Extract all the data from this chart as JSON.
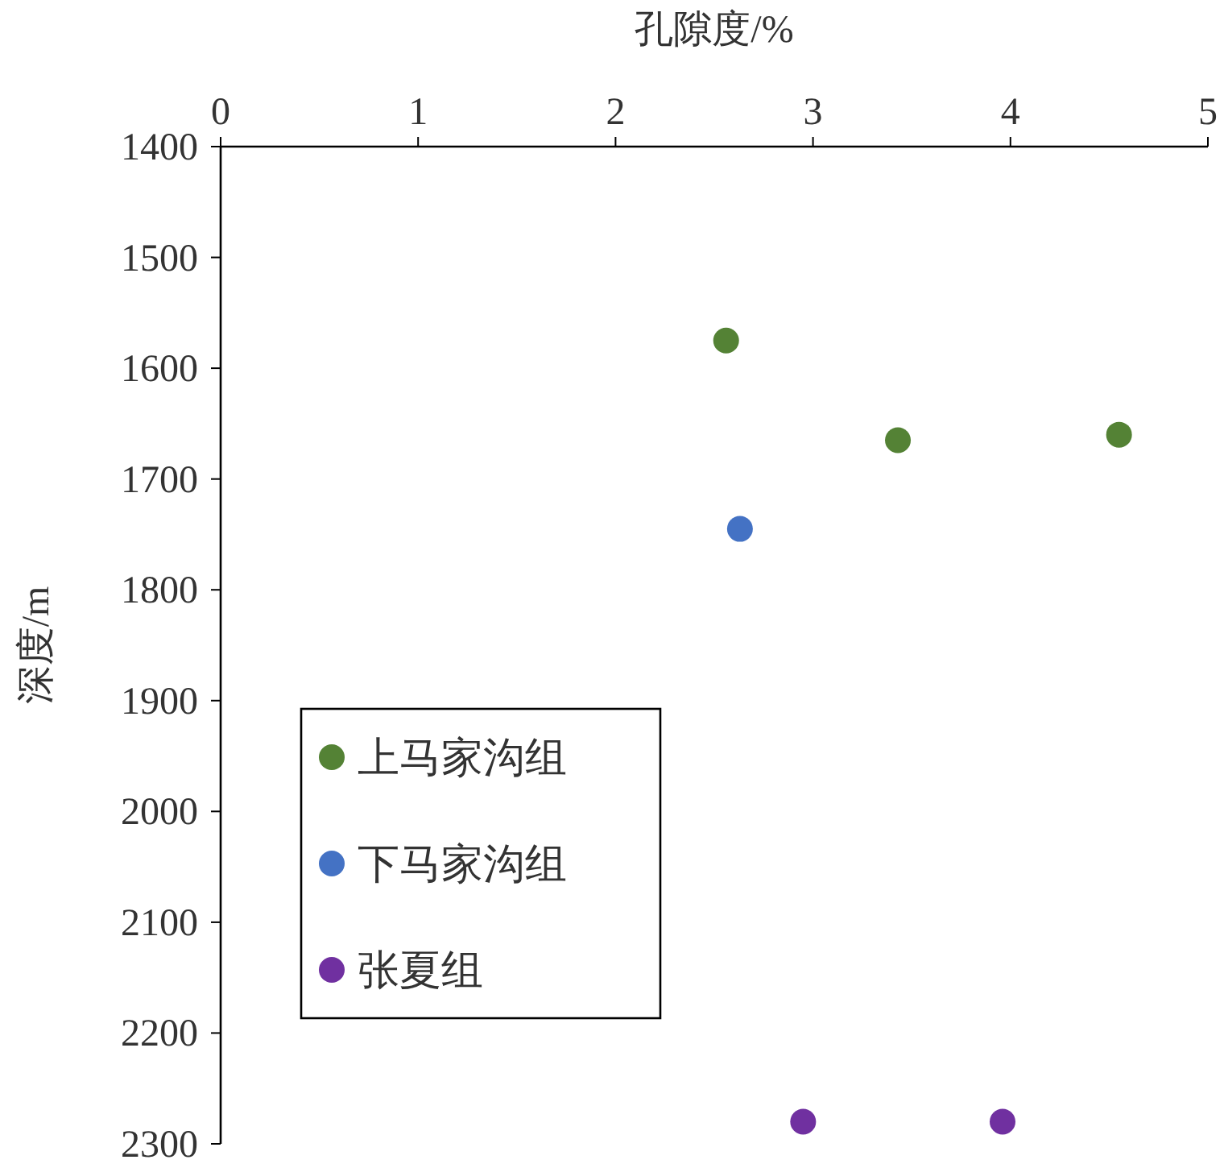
{
  "chart_data": {
    "type": "scatter",
    "xlabel": "孔隙度/%",
    "ylabel": "深度/m",
    "xlim": [
      0,
      5
    ],
    "xticks": [
      0,
      1,
      2,
      3,
      4,
      5
    ],
    "ylim": [
      2300,
      1400
    ],
    "yticks": [
      1400,
      1500,
      1600,
      1700,
      1800,
      1900,
      2000,
      2100,
      2200,
      2300
    ],
    "marker": "circle",
    "legend": "left",
    "series": [
      {
        "name": "上马家沟组",
        "color": "#548235",
        "x": [
          2.56,
          3.43,
          4.55
        ],
        "values": [
          1575,
          1665,
          1660
        ]
      },
      {
        "name": "下马家沟组",
        "color": "#4472c4",
        "x": [
          2.63
        ],
        "values": [
          1745
        ]
      },
      {
        "name": "张夏组",
        "color": "#7030a0",
        "x": [
          2.95,
          3.96
        ],
        "values": [
          2280,
          2280
        ]
      }
    ]
  }
}
